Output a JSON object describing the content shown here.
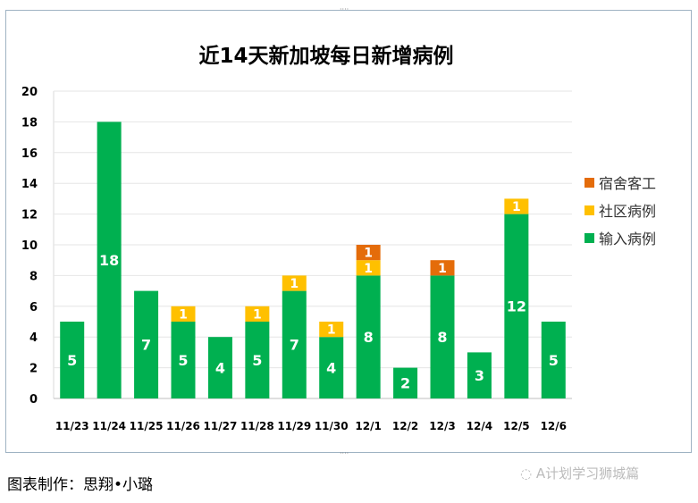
{
  "chart_data": {
    "type": "bar",
    "stacked": true,
    "title": "近14天新加坡每日新增病例",
    "categories": [
      "11/23",
      "11/24",
      "11/25",
      "11/26",
      "11/27",
      "11/28",
      "11/29",
      "11/30",
      "12/1",
      "12/2",
      "12/3",
      "12/4",
      "12/5",
      "12/6"
    ],
    "series": [
      {
        "name": "输入病例",
        "color": "#00B050",
        "values": [
          5,
          18,
          7,
          5,
          4,
          5,
          7,
          4,
          8,
          2,
          8,
          3,
          12,
          5
        ]
      },
      {
        "name": "社区病例",
        "color": "#FFC000",
        "values": [
          0,
          0,
          0,
          1,
          0,
          1,
          1,
          1,
          1,
          0,
          0,
          0,
          1,
          0
        ]
      },
      {
        "name": "宿舍客工",
        "color": "#E46C0A",
        "values": [
          0,
          0,
          0,
          0,
          0,
          0,
          0,
          0,
          1,
          0,
          1,
          0,
          0,
          0
        ]
      }
    ],
    "ylim": [
      0,
      20
    ],
    "yticks": [
      0,
      2,
      4,
      6,
      8,
      10,
      12,
      14,
      16,
      18,
      20
    ],
    "grid": true,
    "legend": "right",
    "legend_order": [
      "宿舍客工",
      "社区病例",
      "输入病例"
    ]
  },
  "footer": {
    "credit": "图表制作：思翔•小璐",
    "watermark": "A计划学习狮城篇"
  }
}
